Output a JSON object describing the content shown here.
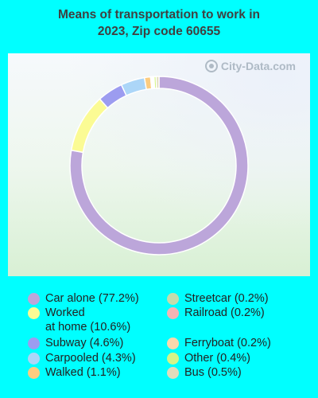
{
  "title_line1": "Means of transportation to work in",
  "title_line2": "2023, Zip code 60655",
  "watermark": "City-Data.com",
  "chart_data": {
    "type": "pie",
    "title": "Means of transportation to work in 2023, Zip code 60655",
    "donut": true,
    "slices": [
      {
        "name": "Car alone",
        "value": 77.2,
        "label": "Car alone (77.2%)",
        "color": "#bca6da"
      },
      {
        "name": "Worked at home",
        "value": 10.6,
        "label": "Worked\nat home (10.6%)",
        "color": "#fbfb94"
      },
      {
        "name": "Subway",
        "value": 4.6,
        "label": "Subway (4.6%)",
        "color": "#9c9cf0"
      },
      {
        "name": "Carpooled",
        "value": 4.3,
        "label": "Carpooled (4.3%)",
        "color": "#acd6f8"
      },
      {
        "name": "Walked",
        "value": 1.1,
        "label": "Walked (1.1%)",
        "color": "#fccc80"
      },
      {
        "name": "Streetcar",
        "value": 0.2,
        "label": "Streetcar (0.2%)",
        "color": "#c4dcac"
      },
      {
        "name": "Railroad",
        "value": 0.2,
        "label": "Railroad (0.2%)",
        "color": "#f4b4b4"
      },
      {
        "name": "Ferryboat",
        "value": 0.2,
        "label": "Ferryboat (0.2%)",
        "color": "#fcd8ac"
      },
      {
        "name": "Other",
        "value": 0.4,
        "label": "Other (0.4%)",
        "color": "#d4f488"
      },
      {
        "name": "Bus",
        "value": 0.5,
        "label": "Bus (0.5%)",
        "color": "#e0dcbc"
      }
    ],
    "slice_order": [
      "Car alone",
      "Worked at home",
      "Subway",
      "Carpooled",
      "Walked",
      "Ferryboat",
      "Streetcar",
      "Railroad",
      "Other",
      "Bus"
    ],
    "legend_placement": "bottom"
  }
}
